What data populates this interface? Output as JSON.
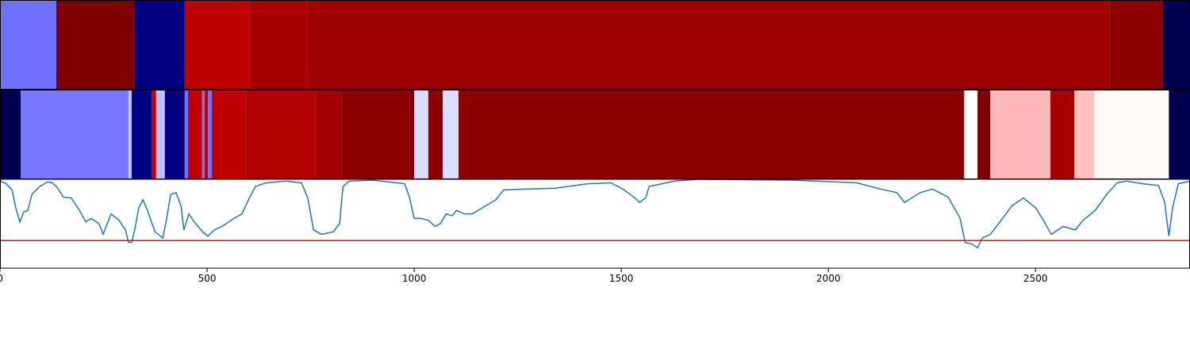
{
  "chart_data": [
    {
      "type": "band",
      "bins": [
        0,
        136,
        324,
        446,
        603,
        743,
        2678,
        2808,
        2873
      ],
      "colors": [
        "#7070ff",
        "#800000",
        "#000080",
        "#c00000",
        "#a80000",
        "#9e0000",
        "#8c0000",
        "#000050"
      ],
      "xlim": [
        0,
        2873
      ]
    },
    {
      "type": "band",
      "bins": [
        0,
        50,
        310,
        318,
        366,
        377,
        398,
        446,
        454,
        488,
        494,
        502,
        511,
        594,
        762,
        824,
        1000,
        1034,
        1069,
        1107,
        2328,
        2360,
        2391,
        2536,
        2594,
        2642,
        2822,
        2873
      ],
      "colors": [
        "#000050",
        "#7878ff",
        "#c0c0ff",
        "#000080",
        "#c00000",
        "#c0c0ff",
        "#000080",
        "#7070ff",
        "#c00000",
        "#7070ff",
        "#c00000",
        "#7070ff",
        "#c00000",
        "#b00000",
        "#a00000",
        "#8c0000",
        "#dcdcff",
        "#8c0000",
        "#dcdcff",
        "#8c0000",
        "#ffffff",
        "#800000",
        "#ffb8b8",
        "#a80000",
        "#ffc0c0",
        "#fff8f8",
        "#000050"
      ],
      "xlim": [
        0,
        2873
      ]
    },
    {
      "type": "line",
      "x": [
        0,
        15,
        29,
        38,
        48,
        57,
        67,
        77,
        96,
        115,
        126,
        138,
        153,
        172,
        192,
        207,
        220,
        239,
        249,
        268,
        287,
        303,
        310,
        318,
        326,
        335,
        345,
        356,
        374,
        393,
        402,
        412,
        425,
        437,
        444,
        456,
        469,
        489,
        502,
        517,
        536,
        565,
        584,
        603,
        617,
        642,
        690,
        728,
        743,
        757,
        776,
        805,
        820,
        828,
        843,
        900,
        977,
        989,
        1000,
        1015,
        1034,
        1050,
        1063,
        1077,
        1092,
        1102,
        1121,
        1140,
        1165,
        1197,
        1216,
        1264,
        1341,
        1418,
        1475,
        1504,
        1533,
        1544,
        1559,
        1567,
        1628,
        1686,
        1916,
        2069,
        2126,
        2165,
        2184,
        2222,
        2251,
        2289,
        2318,
        2326,
        2330,
        2347,
        2360,
        2372,
        2391,
        2414,
        2443,
        2471,
        2500,
        2519,
        2538,
        2567,
        2596,
        2615,
        2644,
        2672,
        2697,
        2720,
        2759,
        2797,
        2812,
        2822,
        2831,
        2845,
        2864,
        2873
      ],
      "values": [
        0.98,
        0.95,
        0.88,
        0.68,
        0.52,
        0.63,
        0.65,
        0.83,
        0.92,
        0.97,
        0.96,
        0.91,
        0.8,
        0.79,
        0.65,
        0.52,
        0.56,
        0.5,
        0.38,
        0.61,
        0.54,
        0.43,
        0.29,
        0.29,
        0.45,
        0.68,
        0.77,
        0.65,
        0.41,
        0.34,
        0.55,
        0.83,
        0.85,
        0.7,
        0.43,
        0.61,
        0.52,
        0.41,
        0.36,
        0.43,
        0.47,
        0.56,
        0.61,
        0.8,
        0.92,
        0.96,
        0.98,
        0.96,
        0.79,
        0.43,
        0.38,
        0.41,
        0.5,
        0.92,
        0.98,
        0.99,
        0.95,
        0.79,
        0.56,
        0.56,
        0.54,
        0.47,
        0.5,
        0.61,
        0.59,
        0.65,
        0.61,
        0.61,
        0.68,
        0.77,
        0.88,
        0.89,
        0.9,
        0.95,
        0.96,
        0.89,
        0.79,
        0.74,
        0.79,
        0.92,
        0.98,
        1.0,
        0.99,
        0.96,
        0.89,
        0.85,
        0.74,
        0.85,
        0.89,
        0.8,
        0.56,
        0.38,
        0.29,
        0.27,
        0.23,
        0.34,
        0.38,
        0.52,
        0.7,
        0.79,
        0.68,
        0.54,
        0.38,
        0.47,
        0.43,
        0.54,
        0.65,
        0.83,
        0.96,
        0.98,
        0.95,
        0.93,
        0.74,
        0.36,
        0.68,
        0.95,
        0.97,
        0.98
      ],
      "color": "#1f77b4",
      "threshold": 0.31,
      "threshold_color": "#ff0000",
      "xlim": [
        0,
        2873
      ],
      "ylim": [
        0,
        1
      ],
      "xticks": [
        0,
        500,
        1000,
        1500,
        2000,
        2500
      ]
    }
  ]
}
